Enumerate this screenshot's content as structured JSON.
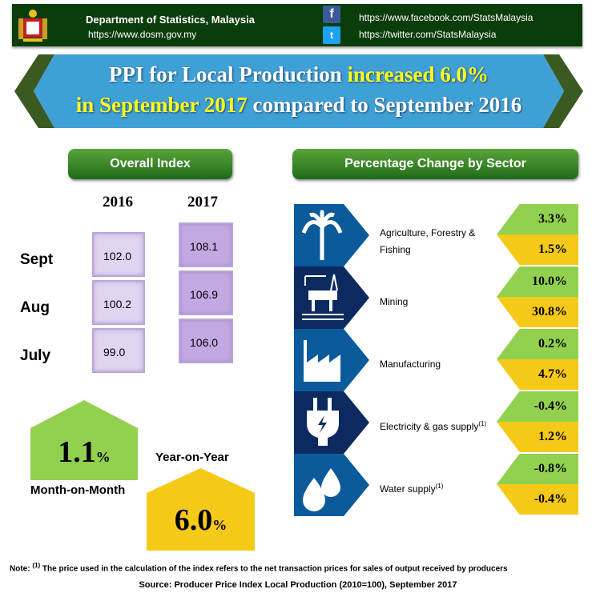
{
  "header": {
    "org": "Department of Statistics, Malaysia",
    "website": "https://www.dosm.gov.my",
    "facebook": "https://www.facebook.com/StatsMalaysia",
    "twitter": "https://twitter.com/StatsMalaysia"
  },
  "banner": {
    "part1": "PPI for Local Production ",
    "part2": "increased 6.0%",
    "part3": "in September 2017",
    "part4": " compared to September 2016"
  },
  "overall": {
    "title": "Overall Index",
    "years": [
      "2016",
      "2017"
    ],
    "rows": [
      {
        "month": "Sept",
        "v2016": "102.0",
        "v2017": "108.1"
      },
      {
        "month": "Aug",
        "v2016": "100.2",
        "v2017": "106.9"
      },
      {
        "month": "July",
        "v2016": "99.0",
        "v2017": "106.0"
      }
    ],
    "mom": {
      "value": "1.1",
      "unit": "%",
      "label": "Month-on-Month"
    },
    "yoy": {
      "value": "6.0",
      "unit": "%",
      "label": "Year-on-Year"
    }
  },
  "sectors": {
    "title": "Percentage Change by Sector",
    "items": [
      {
        "name": "Agriculture, Forestry & Fishing",
        "note": "",
        "mom": "3.3%",
        "yoy": "1.5%",
        "icon": "palm-tree-icon"
      },
      {
        "name": "Mining",
        "note": "",
        "mom": "10.0%",
        "yoy": "30.8%",
        "icon": "oil-rig-icon"
      },
      {
        "name": "Manufacturing",
        "note": "",
        "mom": "0.2%",
        "yoy": "4.7%",
        "icon": "factory-icon"
      },
      {
        "name": "Electricity & gas supply",
        "note": "(1)",
        "mom": "-0.4%",
        "yoy": "1.2%",
        "icon": "plug-icon"
      },
      {
        "name": "Water supply",
        "note": "(1)",
        "mom": "-0.8%",
        "yoy": "-0.4%",
        "icon": "water-drops-icon"
      }
    ]
  },
  "colors": {
    "header": "#0b3d0b",
    "banner": "#3fa0d6",
    "mom": "#92d050",
    "yoy": "#f5c918",
    "sector_icon_light": "#0a5a9c",
    "sector_icon_dark": "#0d2a60"
  },
  "footer": {
    "note_prefix": "Note: ",
    "note_mark": "(1)",
    "note": " The price used in the calculation of the index refers to the net transaction prices for sales of output received by producers",
    "source": "Source: Producer Price Index Local Production (2010=100), September  2017"
  }
}
